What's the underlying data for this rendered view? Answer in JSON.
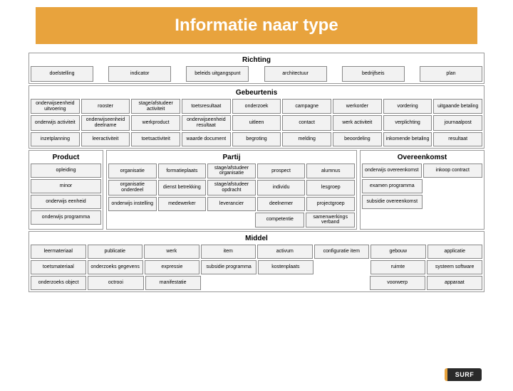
{
  "title": "Informatie naar type",
  "title_bg": "#e8a33d",
  "cell_bg": "#f2f2f2",
  "section_bg": "#ffffff",
  "sections": {
    "richting": {
      "title": "Richting",
      "rows": [
        [
          "doelstelling",
          "indicator",
          "beleids uitgangspunt",
          "architectuur",
          "bedrijfseis",
          "plan"
        ]
      ],
      "wide": true
    },
    "gebeurtenis": {
      "title": "Gebeurtenis",
      "rows": [
        [
          "onderwijseenheid uitvoering",
          "rooster",
          "stage/afstudeer activiteit",
          "toetsresultaat",
          "onderzoek",
          "campagne",
          "werkorder",
          "vordering",
          "uitgaande betaling"
        ],
        [
          "onderwijs activiteit",
          "onderwijseenheid deelname",
          "werkproduct",
          "onderwijseenheid resultaat",
          "uitleen",
          "contact",
          "werk activiteit",
          "verplichting",
          "journaalpost"
        ],
        [
          "inzetplanning",
          "leeractiviteit",
          "toetsactiviteit",
          "waarde document",
          "begroting",
          "melding",
          "beoordeling",
          "inkomende betaling",
          "resultaat"
        ]
      ]
    },
    "product": {
      "title": "Product",
      "rows": [
        [
          "opleiding"
        ],
        [
          "minor"
        ],
        [
          "onderwijs eenheid"
        ],
        [
          "onderwijs programma"
        ]
      ]
    },
    "partij": {
      "title": "Partij",
      "rows": [
        [
          "organisatie",
          "formatieplaats",
          "stage/afstudeer organisatie",
          "prospect",
          "alumnus"
        ],
        [
          "organisatie onderdeel",
          "dienst betrekking",
          "stage/afstudeer opdracht",
          "individu",
          "lesgroep"
        ],
        [
          "onderwijs instelling",
          "medewerker",
          "leverancier",
          "deelnemer",
          "projectgroep"
        ],
        [
          "",
          "",
          "",
          "competentie",
          "samenwerkings verband"
        ]
      ]
    },
    "overeenkomst": {
      "title": "Overeenkomst",
      "rows": [
        [
          "onderwijs overeenkomst",
          "inkoop contract"
        ],
        [
          "examen programma",
          ""
        ],
        [
          "subsidie overeenkomst",
          ""
        ],
        [
          "",
          ""
        ]
      ]
    },
    "middel": {
      "title": "Middel",
      "rows": [
        [
          "leermateriaal",
          "publicatie",
          "werk",
          "item",
          "activum",
          "configuratie item",
          "gebouw",
          "applicatie"
        ],
        [
          "toetsmateriaal",
          "onderzoeks gegevens",
          "expressie",
          "subsidie programma",
          "kostenplaats",
          "",
          "ruimte",
          "systeem software"
        ],
        [
          "onderzoeks object",
          "octrooi",
          "manifestatie",
          "",
          "",
          "",
          "voorwerp",
          "apparaat"
        ]
      ]
    }
  },
  "logo": "SURF"
}
